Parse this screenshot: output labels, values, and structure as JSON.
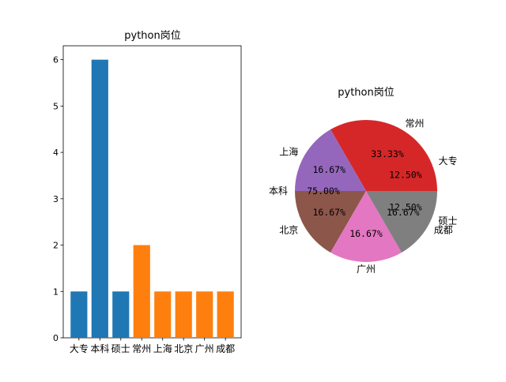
{
  "chart_data": [
    {
      "type": "bar",
      "title": "python岗位",
      "categories": [
        "大专",
        "本科",
        "硕士",
        "常州",
        "上海",
        "北京",
        "广州",
        "成都"
      ],
      "series": [
        {
          "values": [
            1,
            6,
            1,
            null,
            null,
            null,
            null,
            null
          ],
          "color": "#1f77b4"
        },
        {
          "values": [
            null,
            null,
            null,
            2,
            1,
            1,
            1,
            1
          ],
          "color": "#ff7f0e"
        }
      ],
      "yticks": [
        "0",
        "1",
        "2",
        "3",
        "4",
        "5",
        "6"
      ],
      "ylim": [
        0,
        6.3
      ],
      "grid": false
    },
    {
      "type": "pie",
      "title": "python岗位",
      "slices": [
        {
          "label": "常州",
          "pct_text": "33.33%",
          "value": 33.33,
          "color": "#d62728"
        },
        {
          "label": "上海",
          "pct_text": "16.67%",
          "value": 16.67,
          "color": "#9467bd"
        },
        {
          "label": "北京",
          "pct_text": "16.67%",
          "value": 16.67,
          "color": "#8c564b"
        },
        {
          "label": "广州",
          "pct_text": "16.67%",
          "value": 16.67,
          "color": "#e377c2"
        },
        {
          "label": "成都",
          "pct_text": "16.67%",
          "value": 16.67,
          "color": "#7f7f7f"
        }
      ],
      "overlay_slices": [
        {
          "label": "大专",
          "pct_text": "12.50%",
          "value": 12.5
        },
        {
          "label": "本科",
          "pct_text": "75.00%",
          "value": 75.0
        },
        {
          "label": "硕士",
          "pct_text": "12.50%",
          "value": 12.5
        }
      ]
    }
  ]
}
